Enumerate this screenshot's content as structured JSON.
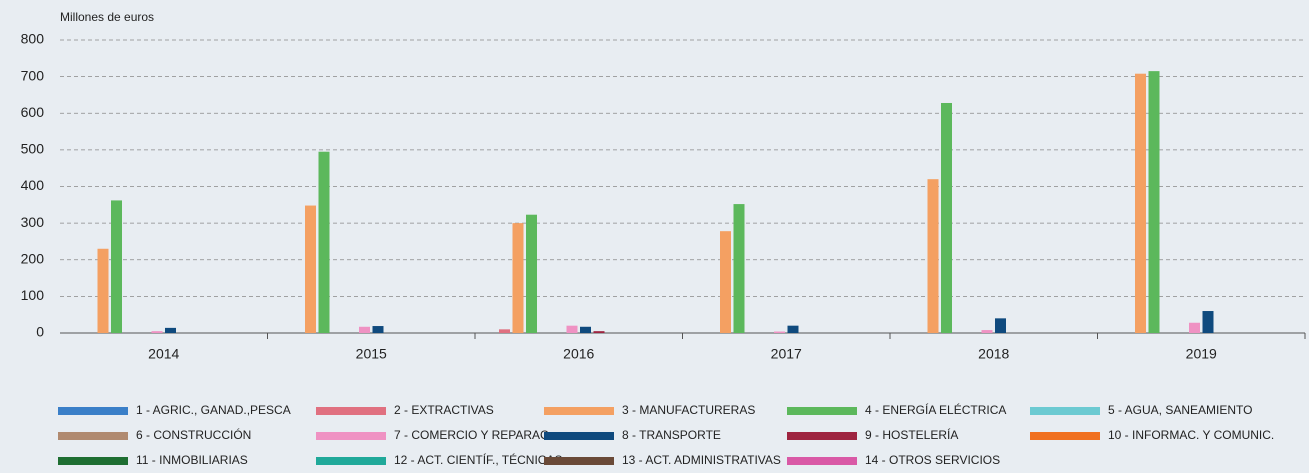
{
  "chart_data": {
    "type": "bar",
    "y_label": "Millones de euros",
    "categories": [
      "2014",
      "2015",
      "2016",
      "2017",
      "2018",
      "2019"
    ],
    "ylim": [
      0,
      800
    ],
    "yticks": [
      0,
      100,
      200,
      300,
      400,
      500,
      600,
      700,
      800
    ],
    "grid": true,
    "series": [
      {
        "name": "1 - AGRIC., GANAD.,PESCA",
        "color": "#3a7fc8",
        "values": [
          0,
          0,
          0,
          0,
          0,
          0
        ]
      },
      {
        "name": "2 - EXTRACTIVAS",
        "color": "#e07080",
        "values": [
          0,
          0,
          10,
          0,
          0,
          0
        ]
      },
      {
        "name": "3 - MANUFACTURERAS",
        "color": "#f4a062",
        "values": [
          230,
          348,
          300,
          278,
          420,
          708
        ]
      },
      {
        "name": "4 - ENERGÍA ELÉCTRICA",
        "color": "#5cb85c",
        "values": [
          362,
          495,
          323,
          352,
          628,
          715
        ]
      },
      {
        "name": "5 - AGUA, SANEAMIENTO",
        "color": "#6ccad2",
        "values": [
          0,
          0,
          0,
          0,
          0,
          0
        ]
      },
      {
        "name": "6 - CONSTRUCCIÓN",
        "color": "#b08a70",
        "values": [
          0,
          0,
          0,
          0,
          0,
          0
        ]
      },
      {
        "name": "7 - COMERCIO Y REPARAC.",
        "color": "#ef92c3",
        "values": [
          5,
          17,
          20,
          4,
          8,
          28
        ]
      },
      {
        "name": "8 - TRANSPORTE",
        "color": "#0f4a7e",
        "values": [
          14,
          19,
          17,
          20,
          40,
          60
        ]
      },
      {
        "name": "9 - HOSTELERÍA",
        "color": "#9e2440",
        "values": [
          0,
          0,
          5,
          0,
          0,
          0
        ]
      },
      {
        "name": "10 - INFORMAC. Y COMUNIC.",
        "color": "#f07020",
        "values": [
          0,
          0,
          0,
          0,
          0,
          0
        ]
      },
      {
        "name": "11 - INMOBILIARIAS",
        "color": "#1e6e32",
        "values": [
          0,
          0,
          0,
          0,
          0,
          0
        ]
      },
      {
        "name": "12 - ACT. CIENTÍF., TÉCNICAS",
        "color": "#20a99a",
        "values": [
          0,
          0,
          0,
          0,
          0,
          0
        ]
      },
      {
        "name": "13 - ACT. ADMINISTRATIVAS",
        "color": "#6a4a38",
        "values": [
          0,
          0,
          0,
          0,
          0,
          0
        ]
      },
      {
        "name": "14 - OTROS SERVICIOS",
        "color": "#d959a6",
        "values": [
          0,
          0,
          0,
          0,
          0,
          0
        ]
      }
    ]
  }
}
